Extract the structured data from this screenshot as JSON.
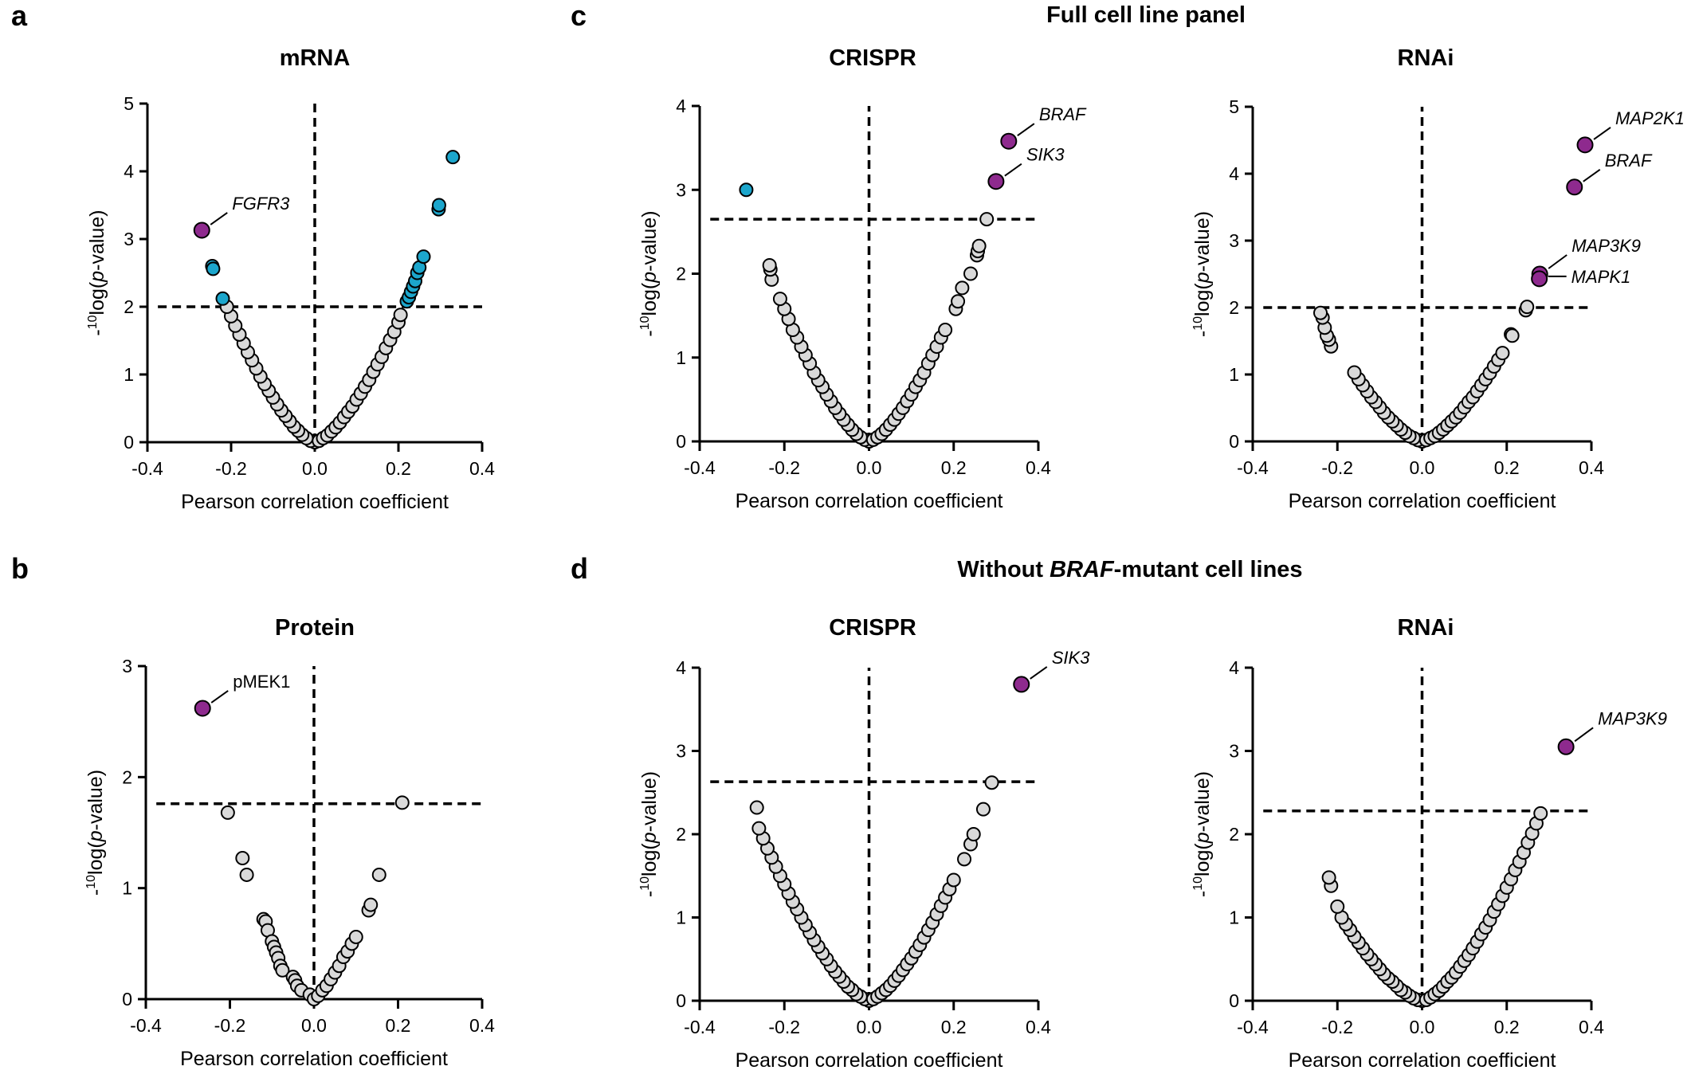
{
  "figure": {
    "group_c_title": "Full cell line panel",
    "group_d_title": {
      "pre": "Without ",
      "italic": "BRAF",
      "post": "-mutant cell lines"
    },
    "xlabel": "Pearson correlation coefficient",
    "ylabel": {
      "prefix": "-",
      "sup": "10",
      "mid": "log(",
      "italic": "p",
      "end": "-value)"
    },
    "colors": {
      "grey": "#d9d9d9",
      "blue": "#1ca6cc",
      "purple": "#8e2a8e",
      "outline": "#000000"
    }
  },
  "chart_data": [
    {
      "type": "scatter",
      "panel_letter": "a",
      "title": "mRNA",
      "xlim": [
        -0.4,
        0.4
      ],
      "ylim": [
        0,
        5
      ],
      "xticks": [
        "-0.4",
        "-0.2",
        "0.0",
        "0.2",
        "0.4"
      ],
      "yticks": [
        "0",
        "1",
        "2",
        "3",
        "4",
        "5"
      ],
      "threshold": 2.0,
      "series": [
        {
          "color": "grey",
          "x": [
            0,
            -0.01,
            -0.02,
            -0.03,
            -0.04,
            -0.05,
            -0.06,
            -0.07,
            -0.08,
            -0.09,
            -0.1,
            -0.11,
            -0.12,
            -0.13,
            -0.14,
            -0.15,
            -0.16,
            -0.17,
            -0.18,
            -0.19,
            -0.2,
            -0.21,
            0.01,
            0.02,
            0.03,
            0.04,
            0.05,
            0.06,
            0.07,
            0.08,
            0.09,
            0.1,
            0.11,
            0.12,
            0.13,
            0.14,
            0.15,
            0.16,
            0.17,
            0.18,
            0.19,
            0.2,
            0.205
          ],
          "y": [
            0,
            0.02,
            0.06,
            0.11,
            0.17,
            0.23,
            0.31,
            0.39,
            0.47,
            0.56,
            0.66,
            0.76,
            0.86,
            0.97,
            1.09,
            1.21,
            1.33,
            1.46,
            1.59,
            1.72,
            1.86,
            2.0,
            0.02,
            0.06,
            0.1,
            0.16,
            0.22,
            0.29,
            0.37,
            0.45,
            0.53,
            0.63,
            0.72,
            0.82,
            0.92,
            1.04,
            1.15,
            1.26,
            1.39,
            1.51,
            1.63,
            1.77,
            1.88
          ]
        },
        {
          "color": "blue",
          "x": [
            -0.245,
            -0.243,
            -0.22,
            0.22,
            0.225,
            0.23,
            0.235,
            0.24,
            0.245,
            0.25,
            0.26,
            0.296,
            0.297,
            0.33
          ],
          "y": [
            2.6,
            2.56,
            2.12,
            2.08,
            2.14,
            2.22,
            2.3,
            2.38,
            2.5,
            2.58,
            2.74,
            3.44,
            3.5,
            4.21
          ]
        },
        {
          "color": "purple",
          "x": [
            -0.27
          ],
          "y": [
            3.13
          ],
          "labels": [
            "FGFR3"
          ],
          "italic": true
        }
      ]
    },
    {
      "type": "scatter",
      "panel_letter": "c",
      "title": "CRISPR",
      "xlim": [
        -0.4,
        0.4
      ],
      "ylim": [
        0,
        4
      ],
      "xticks": [
        "-0.4",
        "-0.2",
        "0.0",
        "0.2",
        "0.4"
      ],
      "yticks": [
        "0",
        "1",
        "2",
        "3",
        "4"
      ],
      "threshold": 2.65,
      "series": [
        {
          "color": "grey",
          "x": [
            0,
            -0.01,
            -0.02,
            -0.03,
            -0.04,
            -0.05,
            -0.06,
            -0.07,
            -0.08,
            -0.09,
            -0.1,
            -0.11,
            -0.12,
            -0.13,
            -0.14,
            -0.15,
            -0.16,
            -0.17,
            -0.18,
            -0.19,
            -0.2,
            -0.21,
            -0.23,
            -0.233,
            -0.235,
            0.01,
            0.02,
            0.03,
            0.04,
            0.05,
            0.06,
            0.07,
            0.08,
            0.09,
            0.1,
            0.11,
            0.12,
            0.13,
            0.14,
            0.15,
            0.16,
            0.17,
            0.18,
            0.205,
            0.21,
            0.22,
            0.24,
            0.255,
            0.257,
            0.26,
            0.278
          ],
          "y": [
            0,
            0.02,
            0.05,
            0.09,
            0.14,
            0.2,
            0.26,
            0.33,
            0.4,
            0.48,
            0.56,
            0.65,
            0.73,
            0.82,
            0.93,
            1.03,
            1.13,
            1.24,
            1.33,
            1.46,
            1.58,
            1.7,
            1.93,
            2.05,
            2.1,
            0.02,
            0.05,
            0.09,
            0.14,
            0.2,
            0.26,
            0.33,
            0.4,
            0.48,
            0.56,
            0.65,
            0.73,
            0.82,
            0.93,
            1.03,
            1.13,
            1.24,
            1.33,
            1.58,
            1.67,
            1.83,
            2.0,
            2.22,
            2.27,
            2.33,
            2.65
          ]
        },
        {
          "color": "blue",
          "x": [
            -0.29
          ],
          "y": [
            3.0
          ]
        },
        {
          "color": "purple",
          "x": [
            0.33,
            0.3
          ],
          "y": [
            3.58,
            3.1
          ],
          "labels": [
            "BRAF",
            "SIK3"
          ],
          "italic": true
        }
      ]
    },
    {
      "type": "scatter",
      "panel_letter": "",
      "title": "RNAi",
      "xlim": [
        -0.4,
        0.4
      ],
      "ylim": [
        0,
        5
      ],
      "xticks": [
        "-0.4",
        "-0.2",
        "0.0",
        "0.2",
        "0.4"
      ],
      "yticks": [
        "0",
        "1",
        "2",
        "3",
        "4",
        "5"
      ],
      "threshold": 2.0,
      "series": [
        {
          "color": "grey",
          "x": [
            0,
            -0.01,
            -0.02,
            -0.03,
            -0.04,
            -0.05,
            -0.06,
            -0.07,
            -0.08,
            -0.09,
            -0.1,
            -0.11,
            -0.12,
            -0.13,
            -0.14,
            -0.15,
            -0.16,
            -0.215,
            -0.22,
            -0.225,
            -0.23,
            -0.235,
            -0.24,
            0.01,
            0.02,
            0.03,
            0.04,
            0.05,
            0.06,
            0.07,
            0.08,
            0.09,
            0.1,
            0.11,
            0.12,
            0.13,
            0.14,
            0.15,
            0.16,
            0.17,
            0.18,
            0.19,
            0.21,
            0.213,
            0.245,
            0.248
          ],
          "y": [
            0,
            0.02,
            0.05,
            0.08,
            0.13,
            0.18,
            0.24,
            0.3,
            0.36,
            0.43,
            0.51,
            0.59,
            0.66,
            0.75,
            0.84,
            0.93,
            1.03,
            1.42,
            1.52,
            1.58,
            1.7,
            1.85,
            1.92,
            0.02,
            0.05,
            0.08,
            0.13,
            0.18,
            0.24,
            0.3,
            0.36,
            0.43,
            0.51,
            0.59,
            0.66,
            0.75,
            0.84,
            0.93,
            1.02,
            1.12,
            1.22,
            1.32,
            1.6,
            1.58,
            1.96,
            2.01
          ]
        },
        {
          "color": "purple",
          "x": [
            0.385,
            0.36,
            0.278,
            0.277
          ],
          "y": [
            4.43,
            3.8,
            2.5,
            2.43
          ],
          "labels": [
            "MAP2K1",
            "BRAF",
            "MAP3K9",
            "MAPK1"
          ],
          "italic": true
        }
      ]
    },
    {
      "type": "scatter",
      "panel_letter": "b",
      "title": "Protein",
      "xlim": [
        -0.4,
        0.4
      ],
      "ylim": [
        0,
        3
      ],
      "xticks": [
        "-0.4",
        "-0.2",
        "0.0",
        "0.2",
        "0.4"
      ],
      "yticks": [
        "0",
        "1",
        "2",
        "3"
      ],
      "threshold": 1.76,
      "series": [
        {
          "color": "grey",
          "x": [
            -0.205,
            -0.17,
            -0.16,
            -0.12,
            -0.115,
            -0.11,
            -0.1,
            -0.095,
            -0.09,
            -0.085,
            -0.08,
            -0.075,
            -0.05,
            -0.045,
            -0.04,
            -0.03,
            -0.01,
            0,
            0.01,
            0.02,
            0.03,
            0.04,
            0.05,
            0.06,
            0.07,
            0.08,
            0.09,
            0.1,
            0.13,
            0.135,
            0.155,
            0.21
          ],
          "y": [
            1.68,
            1.27,
            1.12,
            0.72,
            0.7,
            0.62,
            0.52,
            0.47,
            0.42,
            0.37,
            0.3,
            0.26,
            0.2,
            0.17,
            0.12,
            0.08,
            0.04,
            0,
            0.03,
            0.08,
            0.12,
            0.18,
            0.24,
            0.3,
            0.38,
            0.43,
            0.5,
            0.56,
            0.8,
            0.85,
            1.12,
            1.77
          ]
        },
        {
          "color": "purple",
          "x": [
            -0.265
          ],
          "y": [
            2.62
          ],
          "labels": [
            "pMEK1"
          ],
          "italic": false
        }
      ]
    },
    {
      "type": "scatter",
      "panel_letter": "d",
      "title": "CRISPR",
      "xlim": [
        -0.4,
        0.4
      ],
      "ylim": [
        0,
        4
      ],
      "xticks": [
        "-0.4",
        "-0.2",
        "0.0",
        "0.2",
        "0.4"
      ],
      "yticks": [
        "0",
        "1",
        "2",
        "3",
        "4"
      ],
      "threshold": 2.63,
      "series": [
        {
          "color": "grey",
          "x": [
            0,
            -0.01,
            -0.02,
            -0.03,
            -0.04,
            -0.05,
            -0.06,
            -0.07,
            -0.08,
            -0.09,
            -0.1,
            -0.11,
            -0.12,
            -0.13,
            -0.14,
            -0.15,
            -0.16,
            -0.17,
            -0.18,
            -0.19,
            -0.2,
            -0.21,
            -0.22,
            -0.23,
            -0.24,
            -0.25,
            -0.26,
            -0.265,
            0.01,
            0.02,
            0.03,
            0.04,
            0.05,
            0.06,
            0.07,
            0.08,
            0.09,
            0.1,
            0.11,
            0.12,
            0.13,
            0.14,
            0.15,
            0.16,
            0.17,
            0.18,
            0.19,
            0.2,
            0.225,
            0.24,
            0.247,
            0.27,
            0.29
          ],
          "y": [
            0,
            0.02,
            0.05,
            0.08,
            0.13,
            0.17,
            0.23,
            0.29,
            0.35,
            0.42,
            0.5,
            0.57,
            0.65,
            0.73,
            0.82,
            0.91,
            1.0,
            1.1,
            1.19,
            1.29,
            1.4,
            1.5,
            1.61,
            1.72,
            1.83,
            1.95,
            2.07,
            2.32,
            0.02,
            0.05,
            0.09,
            0.13,
            0.18,
            0.24,
            0.3,
            0.37,
            0.44,
            0.51,
            0.59,
            0.67,
            0.76,
            0.85,
            0.94,
            1.04,
            1.14,
            1.24,
            1.34,
            1.45,
            1.7,
            1.88,
            2.0,
            2.3,
            2.62
          ]
        },
        {
          "color": "purple",
          "x": [
            0.36
          ],
          "y": [
            3.8
          ],
          "labels": [
            "SIK3"
          ],
          "italic": true
        }
      ]
    },
    {
      "type": "scatter",
      "panel_letter": "",
      "title": "RNAi",
      "xlim": [
        -0.4,
        0.4
      ],
      "ylim": [
        0,
        4
      ],
      "xticks": [
        "-0.4",
        "-0.2",
        "0.0",
        "0.2",
        "0.4"
      ],
      "yticks": [
        "0",
        "1",
        "2",
        "3",
        "4"
      ],
      "threshold": 2.28,
      "series": [
        {
          "color": "grey",
          "x": [
            0,
            -0.01,
            -0.02,
            -0.03,
            -0.04,
            -0.05,
            -0.06,
            -0.07,
            -0.08,
            -0.09,
            -0.1,
            -0.11,
            -0.12,
            -0.13,
            -0.14,
            -0.15,
            -0.16,
            -0.17,
            -0.18,
            -0.19,
            -0.2,
            -0.215,
            -0.22,
            0.01,
            0.02,
            0.03,
            0.04,
            0.05,
            0.06,
            0.07,
            0.08,
            0.09,
            0.1,
            0.11,
            0.12,
            0.13,
            0.14,
            0.15,
            0.16,
            0.17,
            0.18,
            0.19,
            0.2,
            0.21,
            0.22,
            0.23,
            0.24,
            0.25,
            0.26,
            0.27,
            0.28
          ],
          "y": [
            0,
            0.01,
            0.03,
            0.06,
            0.1,
            0.13,
            0.18,
            0.23,
            0.27,
            0.32,
            0.38,
            0.44,
            0.5,
            0.56,
            0.63,
            0.7,
            0.77,
            0.85,
            0.92,
            1.0,
            1.13,
            1.38,
            1.48,
            0.01,
            0.04,
            0.08,
            0.12,
            0.17,
            0.23,
            0.28,
            0.34,
            0.41,
            0.48,
            0.55,
            0.63,
            0.71,
            0.8,
            0.88,
            0.97,
            1.07,
            1.16,
            1.26,
            1.36,
            1.46,
            1.57,
            1.67,
            1.78,
            1.9,
            2.01,
            2.13,
            2.25
          ]
        },
        {
          "color": "purple",
          "x": [
            0.34
          ],
          "y": [
            3.05
          ],
          "labels": [
            "MAP3K9"
          ],
          "italic": true
        }
      ]
    }
  ]
}
